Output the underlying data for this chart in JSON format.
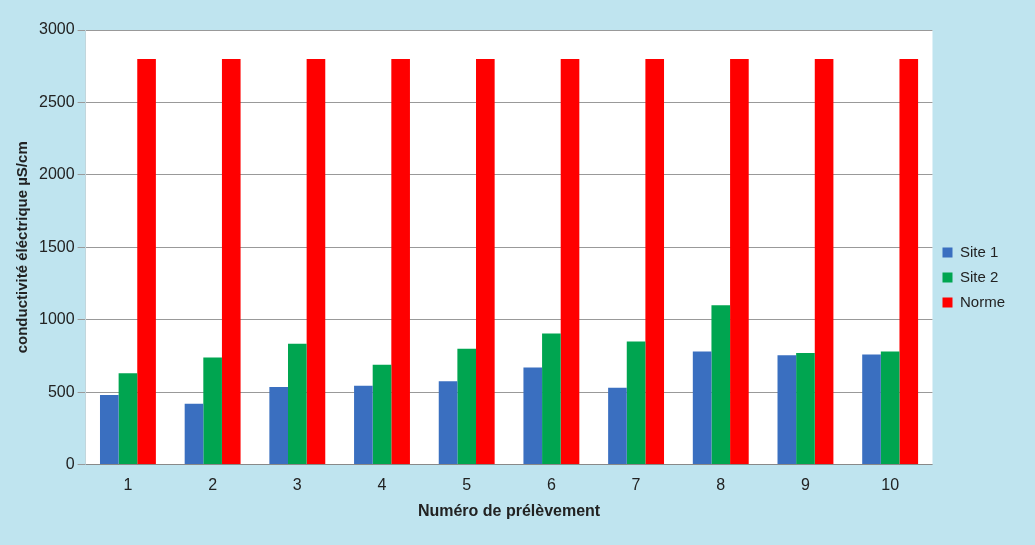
{
  "chart_data": {
    "type": "bar",
    "xlabel": "Numéro de prélèvement",
    "ylabel": "conductivité éléctrique µS/cm",
    "categories": [
      "1",
      "2",
      "3",
      "4",
      "5",
      "6",
      "7",
      "8",
      "9",
      "10"
    ],
    "series": [
      {
        "name": "Site 1",
        "color": "#3a6fc0",
        "values": [
          480,
          420,
          535,
          545,
          575,
          670,
          530,
          780,
          755,
          760
        ]
      },
      {
        "name": "Site 2",
        "color": "#00a550",
        "values": [
          630,
          740,
          835,
          690,
          800,
          905,
          850,
          1100,
          770,
          780
        ]
      },
      {
        "name": "Norme",
        "color": "#ff0000",
        "values": [
          2800,
          2800,
          2800,
          2800,
          2800,
          2800,
          2800,
          2800,
          2800,
          2800
        ]
      }
    ],
    "ylim": [
      0,
      3000
    ],
    "yticks": [
      0,
      500,
      1000,
      1500,
      2000,
      2500,
      3000
    ],
    "grid": "y",
    "legend": "right"
  }
}
